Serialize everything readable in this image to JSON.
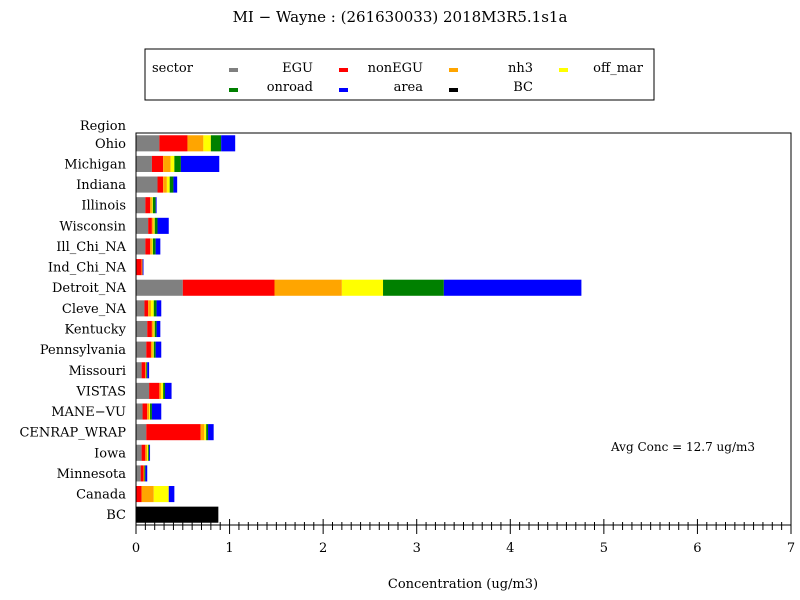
{
  "chart_data": {
    "type": "bar",
    "orientation": "horizontal",
    "stacked": true,
    "title": "MI − Wayne : (261630033) 2018M3R5.1s1a",
    "xlabel": "Concentration (ug/m3)",
    "ylabel": "Region",
    "xlim": [
      0,
      7
    ],
    "xticks": [
      0,
      1,
      2,
      3,
      4,
      5,
      6,
      7
    ],
    "grid": false,
    "legend_title": "sector",
    "legend_position": "top",
    "annotation": "Avg Conc = 12.7 ug/m3",
    "categories": [
      "Ohio",
      "Michigan",
      "Indiana",
      "Illinois",
      "Wisconsin",
      "Ill_Chi_NA",
      "Ind_Chi_NA",
      "Detroit_NA",
      "Cleve_NA",
      "Kentucky",
      "Pennsylvania",
      "Missouri",
      "VISTAS",
      "MANE−VU",
      "CENRAP_WRAP",
      "Iowa",
      "Minnesota",
      "Canada",
      "BC"
    ],
    "series": [
      {
        "name": "EGU",
        "color": "#808080",
        "values": [
          0.25,
          0.17,
          0.23,
          0.1,
          0.13,
          0.1,
          0.0,
          0.5,
          0.09,
          0.12,
          0.11,
          0.06,
          0.14,
          0.07,
          0.11,
          0.06,
          0.05,
          0.0,
          0.0
        ]
      },
      {
        "name": "nonEGU",
        "color": "#ff0000",
        "values": [
          0.3,
          0.12,
          0.06,
          0.05,
          0.04,
          0.05,
          0.06,
          0.98,
          0.04,
          0.05,
          0.05,
          0.04,
          0.11,
          0.05,
          0.58,
          0.04,
          0.03,
          0.06,
          0.0
        ]
      },
      {
        "name": "nh3",
        "color": "#ffa500",
        "values": [
          0.17,
          0.08,
          0.04,
          0.02,
          0.02,
          0.02,
          0.01,
          0.72,
          0.03,
          0.02,
          0.02,
          0.01,
          0.02,
          0.02,
          0.04,
          0.02,
          0.01,
          0.13,
          0.0
        ]
      },
      {
        "name": "off_mar",
        "color": "#ffff00",
        "values": [
          0.08,
          0.04,
          0.03,
          0.01,
          0.01,
          0.01,
          0.0,
          0.44,
          0.03,
          0.01,
          0.01,
          0.0,
          0.02,
          0.01,
          0.02,
          0.01,
          0.0,
          0.16,
          0.0
        ]
      },
      {
        "name": "onroad",
        "color": "#008000",
        "values": [
          0.11,
          0.07,
          0.04,
          0.03,
          0.03,
          0.03,
          0.0,
          0.65,
          0.03,
          0.02,
          0.02,
          0.01,
          0.02,
          0.02,
          0.02,
          0.01,
          0.01,
          0.0,
          0.0
        ]
      },
      {
        "name": "area",
        "color": "#0000ff",
        "values": [
          0.15,
          0.41,
          0.04,
          0.01,
          0.12,
          0.05,
          0.01,
          1.47,
          0.05,
          0.04,
          0.06,
          0.02,
          0.07,
          0.1,
          0.06,
          0.01,
          0.02,
          0.06,
          0.0
        ]
      },
      {
        "name": "BC",
        "color": "#000000",
        "values": [
          0,
          0,
          0,
          0,
          0,
          0,
          0,
          0,
          0,
          0,
          0,
          0,
          0,
          0,
          0,
          0,
          0,
          0,
          0.88
        ]
      }
    ]
  }
}
